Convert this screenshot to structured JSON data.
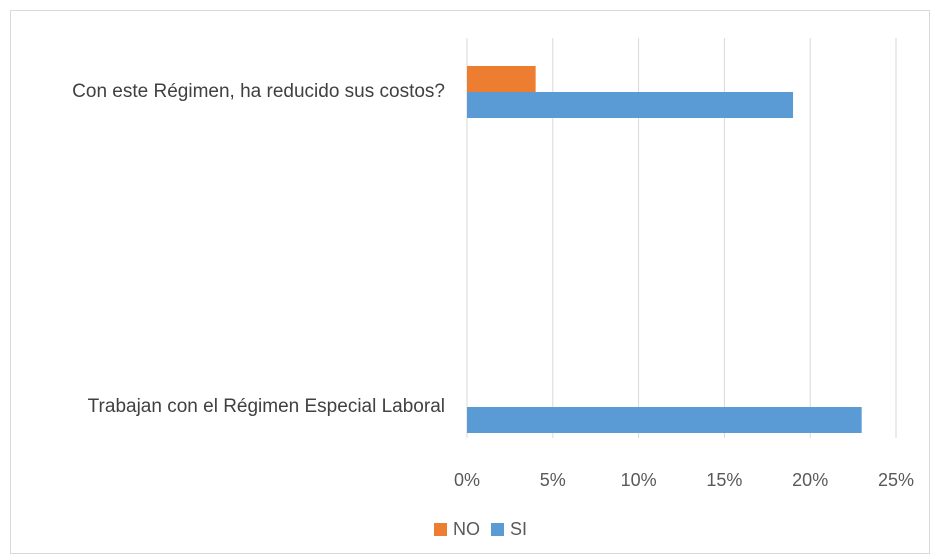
{
  "chart_data": {
    "type": "bar",
    "orientation": "horizontal",
    "categories": [
      "Trabajan con el Régimen Especial Laboral",
      "Con este Régimen, ha reducido sus costos?"
    ],
    "series": [
      {
        "name": "NO",
        "color": "#ed7d31",
        "values": [
          null,
          0.04
        ]
      },
      {
        "name": "SI",
        "color": "#5b9bd5",
        "values": [
          0.23,
          0.19
        ]
      }
    ],
    "x_ticks": [
      "0%",
      "5%",
      "10%",
      "15%",
      "20%",
      "25%"
    ],
    "xlim": [
      0,
      0.25
    ],
    "grid": true,
    "legend_position": "bottom"
  }
}
